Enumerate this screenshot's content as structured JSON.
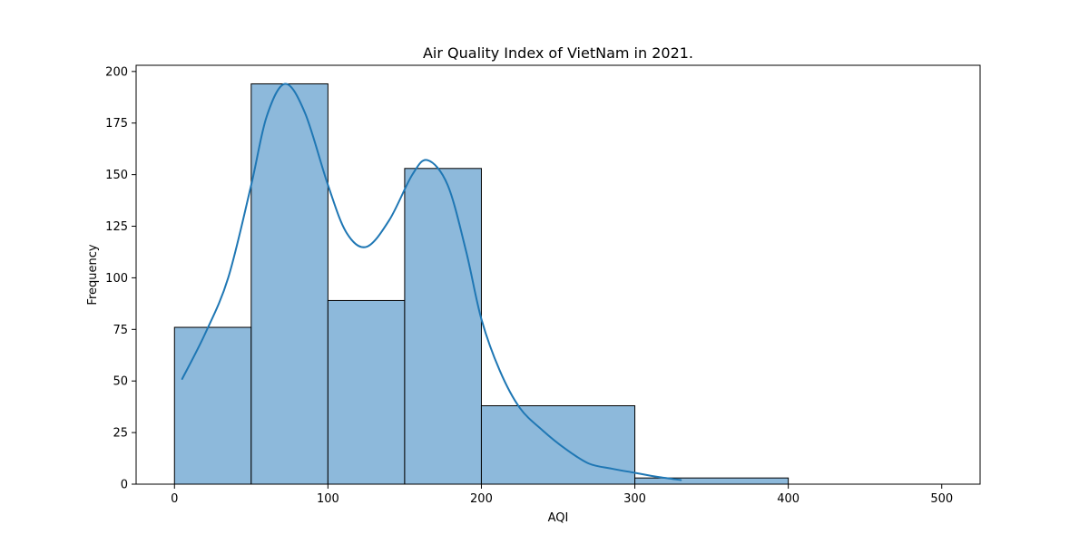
{
  "chart_data": {
    "type": "histogram",
    "title": "Air Quality Index of VietNam in 2021.",
    "xlabel": "AQI",
    "ylabel": "Frequency",
    "xlim": [
      -25,
      525
    ],
    "ylim": [
      0,
      203
    ],
    "xticks": [
      0,
      100,
      200,
      300,
      400,
      500
    ],
    "yticks": [
      0,
      25,
      50,
      75,
      100,
      125,
      150,
      175,
      200
    ],
    "grid": false,
    "bins": [
      {
        "start": 0,
        "end": 50,
        "count": 76
      },
      {
        "start": 50,
        "end": 100,
        "count": 194
      },
      {
        "start": 100,
        "end": 150,
        "count": 89
      },
      {
        "start": 150,
        "end": 200,
        "count": 153
      },
      {
        "start": 200,
        "end": 300,
        "count": 38
      },
      {
        "start": 300,
        "end": 400,
        "count": 3
      },
      {
        "start": 400,
        "end": 500,
        "count": 0
      }
    ],
    "kde": {
      "x": [
        5,
        20,
        35,
        50,
        60,
        72,
        85,
        100,
        112,
        125,
        140,
        155,
        165,
        178,
        190,
        200,
        212,
        225,
        240,
        255,
        270,
        285,
        300,
        315,
        330
      ],
      "y": [
        51,
        73,
        100,
        145,
        178,
        194,
        180,
        145,
        122,
        115,
        128,
        150,
        157,
        145,
        113,
        80,
        55,
        37,
        26,
        17,
        10,
        7.5,
        5.5,
        3.5,
        2
      ]
    },
    "colors": {
      "bar_fill": "#8db9db",
      "bar_edge": "#000000",
      "kde_line": "#1f77b4"
    }
  }
}
